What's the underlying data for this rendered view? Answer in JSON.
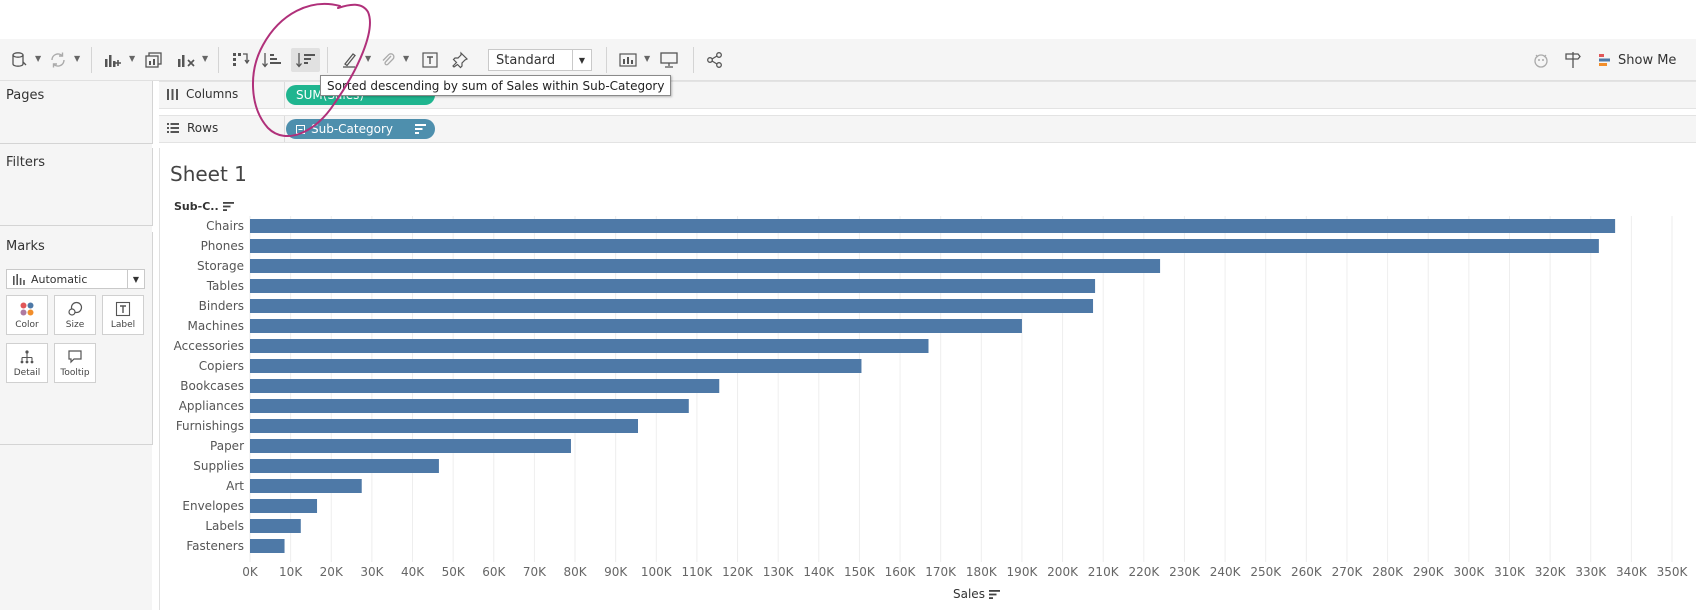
{
  "toolbar": {
    "standard_select": "Standard",
    "show_me_label": "Show Me"
  },
  "tooltip": {
    "text": "Sorted descending by sum of Sales within Sub-Category"
  },
  "pages_card": {
    "title": "Pages"
  },
  "filters_card": {
    "title": "Filters"
  },
  "marks_card": {
    "title": "Marks",
    "mark_type": "Automatic",
    "buttons": {
      "color": "Color",
      "size": "Size",
      "label": "Label",
      "detail": "Detail",
      "tooltip": "Tooltip"
    }
  },
  "shelves": {
    "columns_label": "Columns",
    "columns_pill": "SUM(Sales)",
    "rows_label": "Rows",
    "rows_pill": "Sub-Category"
  },
  "sheet": {
    "title": "Sheet 1",
    "row_header": "Sub-C..",
    "x_axis_label": "Sales"
  },
  "chart_data": {
    "type": "bar",
    "orientation": "horizontal",
    "categories": [
      "Chairs",
      "Phones",
      "Storage",
      "Tables",
      "Binders",
      "Machines",
      "Accessories",
      "Copiers",
      "Bookcases",
      "Appliances",
      "Furnishings",
      "Paper",
      "Supplies",
      "Art",
      "Envelopes",
      "Labels",
      "Fasteners"
    ],
    "values": [
      336000,
      332000,
      224000,
      208000,
      207500,
      190000,
      167000,
      150500,
      115500,
      108000,
      95500,
      79000,
      46500,
      27500,
      16500,
      12500,
      8500
    ],
    "xlabel": "Sales",
    "ylabel": "Sub-C..",
    "xlim": [
      0,
      350000
    ],
    "xticks": [
      0,
      10000,
      20000,
      30000,
      40000,
      50000,
      60000,
      70000,
      80000,
      90000,
      100000,
      110000,
      120000,
      130000,
      140000,
      150000,
      160000,
      170000,
      180000,
      190000,
      200000,
      210000,
      220000,
      230000,
      240000,
      250000,
      260000,
      270000,
      280000,
      290000,
      300000,
      310000,
      320000,
      330000,
      340000,
      350000
    ],
    "xtick_labels": [
      "0K",
      "10K",
      "20K",
      "30K",
      "40K",
      "50K",
      "60K",
      "70K",
      "80K",
      "90K",
      "100K",
      "110K",
      "120K",
      "130K",
      "140K",
      "150K",
      "160K",
      "170K",
      "180K",
      "190K",
      "200K",
      "210K",
      "220K",
      "230K",
      "240K",
      "250K",
      "260K",
      "270K",
      "280K",
      "290K",
      "300K",
      "310K",
      "320K",
      "330K",
      "340K",
      "350K"
    ],
    "bar_color": "#4e79a7",
    "grid": true,
    "sort": "descending"
  },
  "colors": {
    "bar": "#4e79a7",
    "pill_measure": "#1fb58f",
    "pill_dimension": "#4e8fad",
    "annotation": "#b0307a"
  }
}
